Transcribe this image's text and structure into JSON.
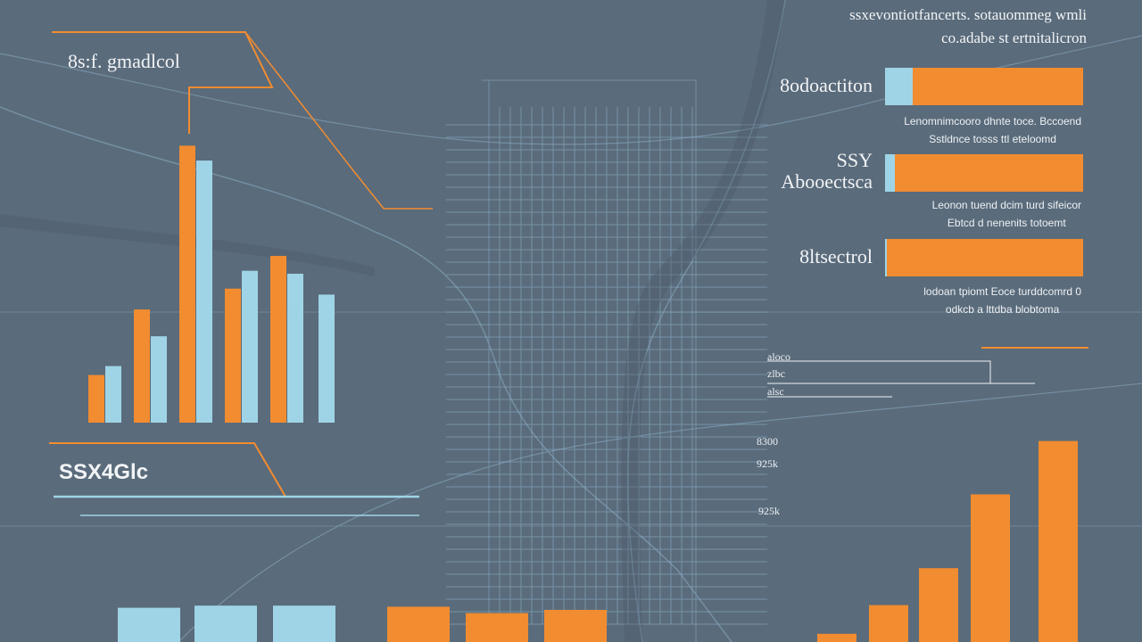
{
  "header": {
    "line1": "ssxevontiotfancerts. sotauommeg wmli",
    "line2": "co.adabe st ertnitalicron"
  },
  "left_panel": {
    "title": "8s:f. gmadlcol",
    "footer_label": "SSX4Glc"
  },
  "right_panel": {
    "items": [
      {
        "label": "8odoactiton",
        "desc1": "Lenomnimcooro dhnte toce. Bccoend",
        "desc2": "Sstldnce  tosss  ttl eteloomd"
      },
      {
        "label": "SSY\nAbooectsca",
        "desc1": "Leonon tuend  dcim  turd  sifeicor",
        "desc2": "Ebtcd d  nenenits  totoemt"
      },
      {
        "label": "8ltsectrol",
        "desc1": "lodoan tpiomt Eoce  turddcomrd 0",
        "desc2": "odkcb a  lttdba  blobtoma"
      }
    ],
    "axis_labels": [
      "aloco",
      "zlbc",
      "alsc",
      "8300",
      "925k"
    ]
  },
  "colors": {
    "background": "#5a6b7b",
    "orange": "#f28c30",
    "light_blue": "#9fd4e6",
    "map_line": "#8fb4cc"
  },
  "chart_data": [
    {
      "type": "bar",
      "title": "8s:f. gmadlcol",
      "categories": [
        "",
        "",
        "",
        "",
        ""
      ],
      "series": [
        {
          "values": [
            16,
            38,
            93,
            45,
            56
          ]
        },
        {
          "values": [
            19,
            29,
            88,
            51,
            50
          ]
        }
      ],
      "extra": [
        43
      ],
      "ylim": [
        0,
        100
      ]
    },
    {
      "type": "bar",
      "orientation": "horizontal",
      "categories": [
        "8odoactiton",
        "SSY Abooectsca",
        "8ltsectrol"
      ],
      "series": [
        {
          "values": [
            86,
            95,
            100
          ]
        },
        {
          "values": [
            14,
            5,
            1
          ]
        }
      ],
      "xlim": [
        0,
        100
      ]
    },
    {
      "type": "bar",
      "categories": [
        "",
        "",
        ""
      ],
      "series": [
        {
          "values": [
            32,
            34,
            34
          ]
        },
        {
          "values": [
            33,
            27,
            30
          ]
        }
      ],
      "ylim": [
        0,
        100
      ]
    },
    {
      "type": "bar",
      "categories": [
        "",
        "",
        "",
        "",
        ""
      ],
      "values": [
        4,
        18,
        36,
        72,
        98
      ],
      "ylim": [
        0,
        100
      ]
    }
  ]
}
